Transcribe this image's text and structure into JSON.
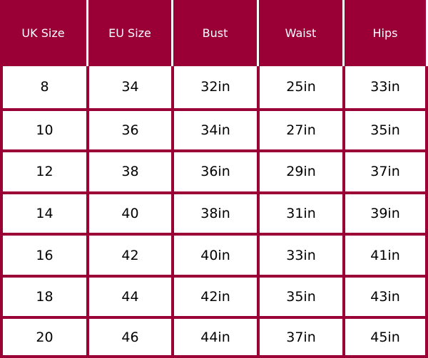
{
  "headers": [
    "UK Size",
    "EU Size",
    "Bust",
    "Waist",
    "Hips"
  ],
  "rows": [
    [
      "8",
      "34",
      "32in",
      "25in",
      "33in"
    ],
    [
      "10",
      "36",
      "34in",
      "27in",
      "35in"
    ],
    [
      "12",
      "38",
      "36in",
      "29in",
      "37in"
    ],
    [
      "14",
      "40",
      "38in",
      "31in",
      "39in"
    ],
    [
      "16",
      "42",
      "40in",
      "33in",
      "41in"
    ],
    [
      "18",
      "44",
      "42in",
      "35in",
      "43in"
    ],
    [
      "20",
      "46",
      "44in",
      "37in",
      "45in"
    ]
  ],
  "colors": {
    "header_background": "#9a0036",
    "header_text": "#ffffff",
    "cell_background": "#ffffff",
    "cell_text": "#000000",
    "grid_lines": "#9a0036"
  }
}
